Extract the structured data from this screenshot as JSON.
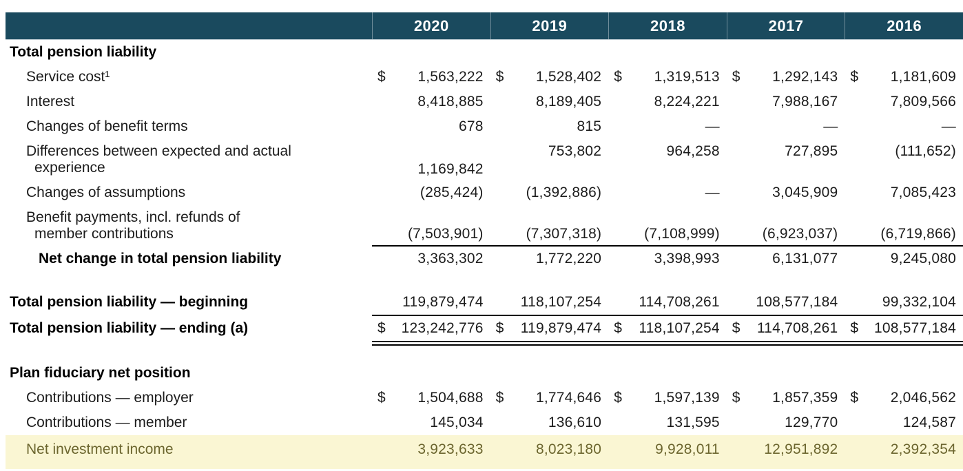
{
  "currency_symbol": "$",
  "colors": {
    "header_bg": "#1a4a5e",
    "header_text": "#ffffff",
    "highlight_bg": "#faf6d3",
    "highlight_text": "#6c662f",
    "body_text": "#1c1c1c",
    "rule": "#000000"
  },
  "header": {
    "years": [
      "2020",
      "2019",
      "2018",
      "2017",
      "2016"
    ]
  },
  "table": {
    "rows": [
      {
        "label": "Total pension liability"
      },
      {
        "label": "Service cost¹",
        "values": [
          "1,563,222",
          "1,528,402",
          "1,319,513",
          "1,292,143",
          "1,181,609"
        ]
      },
      {
        "label": "Interest",
        "values": [
          "8,418,885",
          "8,189,405",
          "8,224,221",
          "7,988,167",
          "7,809,566"
        ]
      },
      {
        "label": "Changes of benefit terms",
        "values": [
          "678",
          "815",
          "—",
          "—",
          "—"
        ]
      },
      {
        "label_line1": "Differences between expected and actual",
        "label_line2": "experience",
        "values": [
          "1,169,842",
          "753,802",
          "964,258",
          "727,895",
          "(111,652)"
        ]
      },
      {
        "label": "Changes of assumptions",
        "values": [
          "(285,424)",
          "(1,392,886)",
          "—",
          "3,045,909",
          "7,085,423"
        ]
      },
      {
        "label_line1": "Benefit payments, incl. refunds of",
        "label_line2": "member contributions",
        "values": [
          "(7,503,901)",
          "(7,307,318)",
          "(7,108,999)",
          "(6,923,037)",
          "(6,719,866)"
        ]
      },
      {
        "label": "Net change in total pension liability",
        "values": [
          "3,363,302",
          "1,772,220",
          "3,398,993",
          "6,131,077",
          "9,245,080"
        ]
      },
      {
        "label": "Total pension liability — beginning",
        "values": [
          "119,879,474",
          "118,107,254",
          "114,708,261",
          "108,577,184",
          "99,332,104"
        ]
      },
      {
        "label": "Total pension liability — ending (a)",
        "values": [
          "123,242,776",
          "119,879,474",
          "118,107,254",
          "114,708,261",
          "108,577,184"
        ]
      },
      {
        "label": "Plan fiduciary net position"
      },
      {
        "label": "Contributions — employer",
        "values": [
          "1,504,688",
          "1,774,646",
          "1,597,139",
          "1,857,359",
          "2,046,562"
        ]
      },
      {
        "label": "Contributions — member",
        "values": [
          "145,034",
          "136,610",
          "131,595",
          "129,770",
          "124,587"
        ]
      },
      {
        "label": "Net investment income",
        "values": [
          "3,923,633",
          "8,023,180",
          "9,928,011",
          "12,951,892",
          "2,392,354"
        ]
      }
    ]
  }
}
